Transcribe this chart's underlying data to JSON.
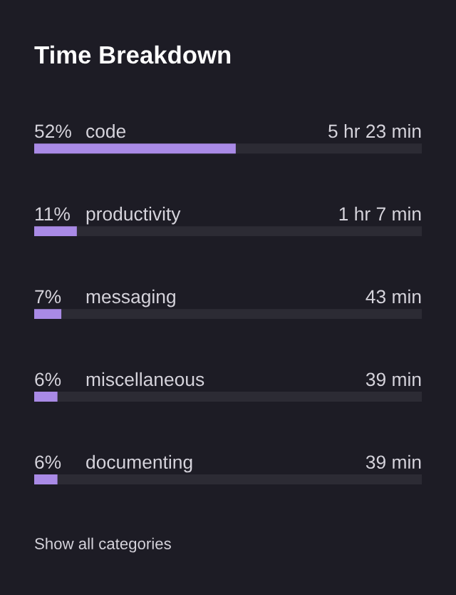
{
  "chart_data": {
    "type": "bar",
    "orientation": "horizontal",
    "title": "Time Breakdown",
    "categories": [
      "code",
      "productivity",
      "messaging",
      "miscellaneous",
      "documenting"
    ],
    "values": [
      52,
      11,
      7,
      6,
      6
    ],
    "value_labels": [
      "52%",
      "11%",
      "7%",
      "6%",
      "6%"
    ],
    "color": "#a98ae6",
    "xlim": [
      0,
      100
    ],
    "annotations": [
      "5 hr 23 min",
      "1 hr 7 min",
      "43 min",
      "39 min",
      "39 min",
      "Show all categories"
    ]
  }
}
